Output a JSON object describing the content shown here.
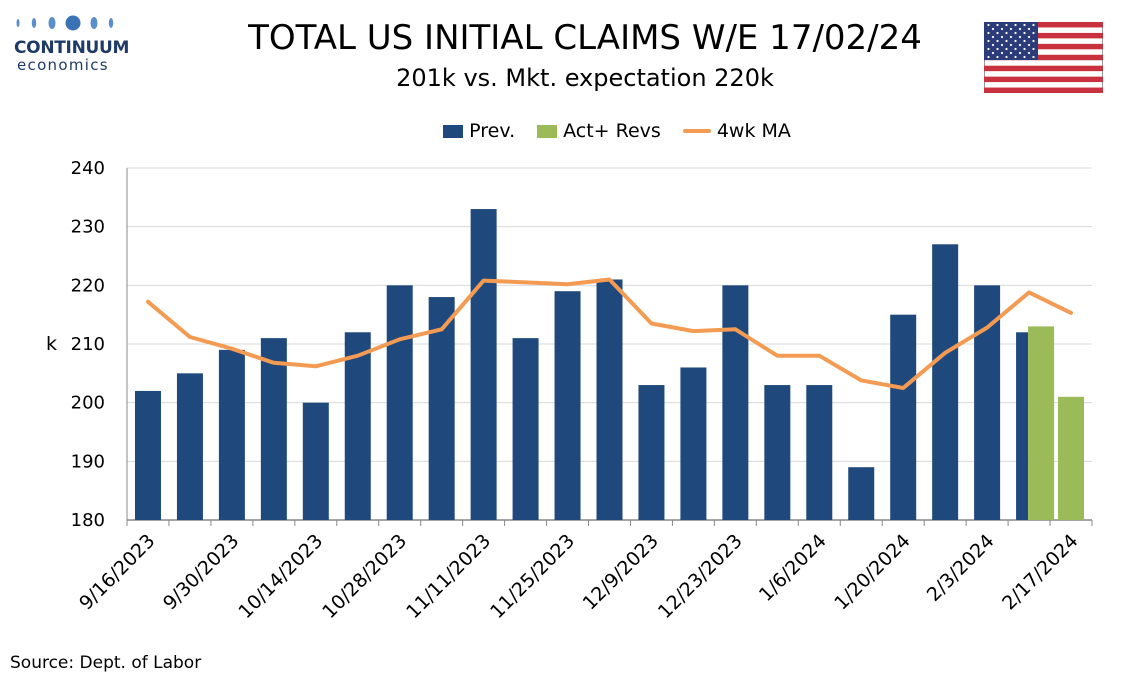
{
  "brand": {
    "name": "CONTINUUM",
    "sub": "economics"
  },
  "header": {
    "title": "TOTAL US INITIAL CLAIMS W/E 17/02/24",
    "subtitle": "201k vs. Mkt. expectation 220k",
    "flag_icon": "us-flag-icon"
  },
  "footer": {
    "source": "Source: Dept. of Labor"
  },
  "colors": {
    "prev": "#1f497d",
    "act": "#9bbb59",
    "ma": "#f39b52",
    "grid": "#d9d9d9",
    "brand": "#1f3a66"
  },
  "chart_data": {
    "type": "bar",
    "ylabel": "k",
    "ylim": [
      180,
      240
    ],
    "yticks": [
      180,
      190,
      200,
      210,
      220,
      230,
      240
    ],
    "grid": true,
    "legend_position": "top",
    "categories": [
      "9/16/2023",
      "9/23/2023",
      "9/30/2023",
      "10/7/2023",
      "10/14/2023",
      "10/21/2023",
      "10/28/2023",
      "11/4/2023",
      "11/11/2023",
      "11/18/2023",
      "11/25/2023",
      "12/2/2023",
      "12/9/2023",
      "12/16/2023",
      "12/23/2023",
      "12/30/2023",
      "1/6/2024",
      "1/13/2024",
      "1/20/2024",
      "1/27/2024",
      "2/3/2024",
      "2/10/2024",
      "2/17/2024"
    ],
    "x_tick_labels": [
      "9/16/2023",
      "9/30/2023",
      "10/14/2023",
      "10/28/2023",
      "11/11/2023",
      "11/25/2023",
      "12/9/2023",
      "12/23/2023",
      "1/6/2024",
      "1/20/2024",
      "2/3/2024",
      "2/17/2024"
    ],
    "series": [
      {
        "name": "Prev.",
        "kind": "bar",
        "values": [
          202,
          205,
          209,
          211,
          200,
          212,
          220,
          218,
          233,
          211,
          219,
          221,
          203,
          206,
          220,
          203,
          203,
          189,
          215,
          227,
          220,
          212,
          null
        ]
      },
      {
        "name": "Act+ Revs",
        "kind": "bar",
        "values": [
          null,
          null,
          null,
          null,
          null,
          null,
          null,
          null,
          null,
          null,
          null,
          null,
          null,
          null,
          null,
          null,
          null,
          null,
          null,
          null,
          null,
          213,
          201
        ]
      },
      {
        "name": "4wk MA",
        "kind": "line",
        "values": [
          217.2,
          211.2,
          209.2,
          206.8,
          206.2,
          208.0,
          210.8,
          212.5,
          220.8,
          220.5,
          220.2,
          221.0,
          213.5,
          212.2,
          212.5,
          208.0,
          208.0,
          203.8,
          202.5,
          208.5,
          212.8,
          218.8,
          215.3
        ]
      }
    ]
  }
}
